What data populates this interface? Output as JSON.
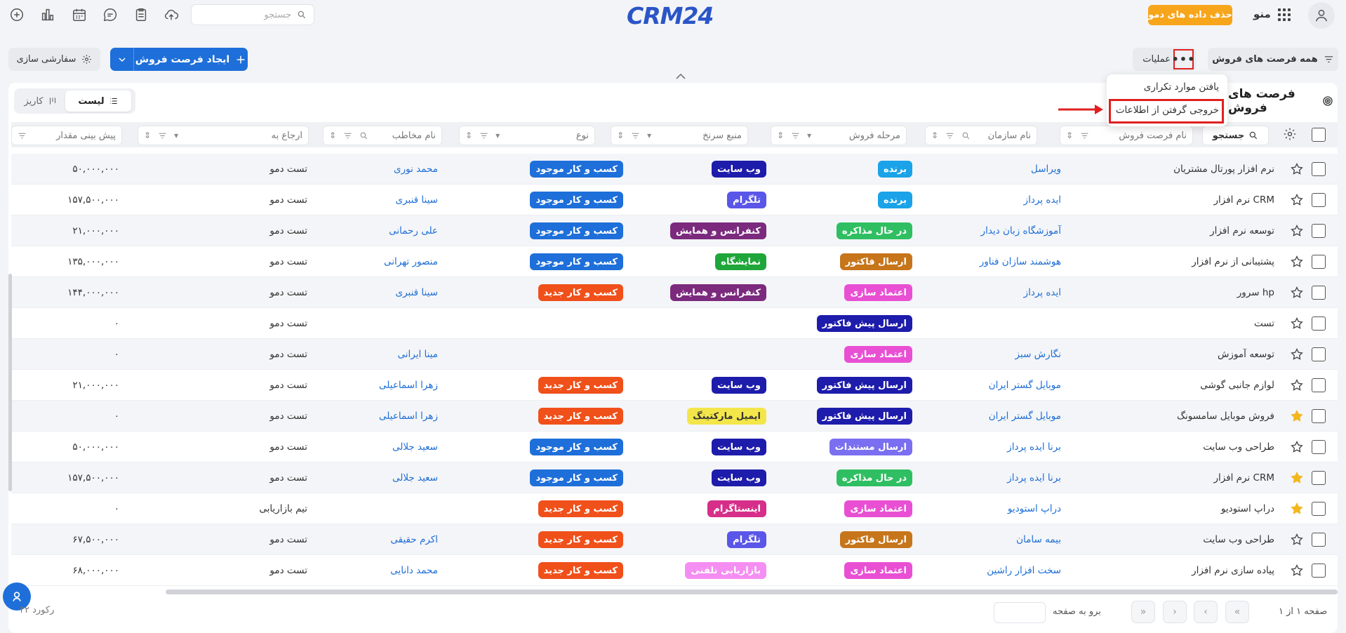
{
  "header": {
    "search_placeholder": "جستجو",
    "logo_text": "CRM24",
    "demo_button": "حذف داده های دمو",
    "menu_label": "منو"
  },
  "toolbar": {
    "filter_label": "همه فرصت های فروش",
    "operations_label": "عملیات",
    "more_label": "•••",
    "create_label": "ایجاد فرصت فروش",
    "customize_label": "سفارشی سازی"
  },
  "dropdown": {
    "items": [
      "یافتن موارد تکراری",
      "خروجی گرفتن از اطلاعات"
    ]
  },
  "page": {
    "title": "فرصت های فروش",
    "views": {
      "list": "لیست",
      "kanban": "کاریز"
    }
  },
  "columns": {
    "search": "جستجو",
    "name": "نام فرصت فروش",
    "org": "نام سازمان",
    "stage": "مرحله فروش",
    "source": "منبع سرنخ",
    "type": "نوع",
    "contact": "نام مخاطب",
    "ref": "ارجاع به",
    "amount": "پیش بینی مقدار"
  },
  "colors": {
    "winner": "#1aa3e8",
    "negotiation": "#2fbf62",
    "invoice": "#c7751a",
    "trust": "#e94fd3",
    "proforma": "#1e1cab",
    "docs": "#7a6ff0",
    "website": "#1e1cab",
    "telegram": "#5a56e8",
    "conference": "#7b2a7e",
    "exhibition": "#1fa63a",
    "email": "#f3e64a",
    "instagram": "#d62f8a",
    "phone": "#f58ef2",
    "existing": "#1e6fd9",
    "new": "#f0501a",
    "star": "#f3b71e"
  },
  "rows": [
    {
      "name": "نرم افزار پورتال مشتریان",
      "org": "ویراسل",
      "stage": "برنده",
      "stage_color": "#1aa3e8",
      "source": "وب سایت",
      "source_color": "#1e1cab",
      "type": "کسب و کار موجود",
      "type_color": "#1e6fd9",
      "contact": "محمد نوری",
      "ref": "تست دمو",
      "amount": "۵۰,۰۰۰,۰۰۰",
      "starred": false
    },
    {
      "name": "نرم افزار CRM",
      "org": "ایده پرداز",
      "stage": "برنده",
      "stage_color": "#1aa3e8",
      "source": "تلگرام",
      "source_color": "#5a56e8",
      "type": "کسب و کار موجود",
      "type_color": "#1e6fd9",
      "contact": "سینا قنبری",
      "ref": "تست دمو",
      "amount": "۱۵۷,۵۰۰,۰۰۰",
      "starred": false
    },
    {
      "name": "توسعه نرم افزار",
      "org": "آموزشگاه زبان دیدار",
      "stage": "در حال مذاکره",
      "stage_color": "#2fbf62",
      "source": "کنفرانس و همایش",
      "source_color": "#7b2a7e",
      "type": "کسب و کار موجود",
      "type_color": "#1e6fd9",
      "contact": "علی رحمانی",
      "ref": "تست دمو",
      "amount": "۲۱,۰۰۰,۰۰۰",
      "starred": false
    },
    {
      "name": "پشتیبانی از نرم افزار",
      "org": "هوشمند سازان فناور",
      "stage": "ارسال فاکتور",
      "stage_color": "#c7751a",
      "source": "نمایشگاه",
      "source_color": "#1fa63a",
      "type": "کسب و کار موجود",
      "type_color": "#1e6fd9",
      "contact": "منصور تهرانی",
      "ref": "تست دمو",
      "amount": "۱۳۵,۰۰۰,۰۰۰",
      "starred": false
    },
    {
      "name": "سرور hp",
      "org": "ایده پرداز",
      "stage": "اعتماد سازی",
      "stage_color": "#e94fd3",
      "source": "کنفرانس و همایش",
      "source_color": "#7b2a7e",
      "type": "کسب و کار جدید",
      "type_color": "#f0501a",
      "contact": "سینا قنبری",
      "ref": "تست دمو",
      "amount": "۱۴۴,۰۰۰,۰۰۰",
      "starred": false
    },
    {
      "name": "تست",
      "org": "",
      "stage": "ارسال پیش فاکتور",
      "stage_color": "#1e1cab",
      "source": "",
      "source_color": "",
      "type": "",
      "type_color": "",
      "contact": "",
      "ref": "تست دمو",
      "amount": "۰",
      "starred": false
    },
    {
      "name": "توسعه آموزش",
      "org": "نگارش سبز",
      "stage": "اعتماد سازی",
      "stage_color": "#e94fd3",
      "source": "",
      "source_color": "",
      "type": "",
      "type_color": "",
      "contact": "مینا ایرانی",
      "ref": "تست دمو",
      "amount": "۰",
      "starred": false
    },
    {
      "name": "لوازم جانبی گوشی",
      "org": "موبایل گستر ایران",
      "stage": "ارسال پیش فاکتور",
      "stage_color": "#1e1cab",
      "source": "وب سایت",
      "source_color": "#1e1cab",
      "type": "کسب و کار جدید",
      "type_color": "#f0501a",
      "contact": "زهرا اسماعیلی",
      "ref": "تست دمو",
      "amount": "۲۱,۰۰۰,۰۰۰",
      "starred": false
    },
    {
      "name": "فروش موبایل سامسونگ",
      "org": "موبایل گستر ایران",
      "stage": "ارسال پیش فاکتور",
      "stage_color": "#1e1cab",
      "source": "ایمیل مارکتینگ",
      "source_color": "#f3e64a",
      "type": "کسب و کار جدید",
      "type_color": "#f0501a",
      "contact": "زهرا اسماعیلی",
      "ref": "تست دمو",
      "amount": "۰",
      "starred": true
    },
    {
      "name": "طراحی وب سایت",
      "org": "برنا ایده پرداز",
      "stage": "ارسال مستندات",
      "stage_color": "#7a6ff0",
      "source": "وب سایت",
      "source_color": "#1e1cab",
      "type": "کسب و کار موجود",
      "type_color": "#1e6fd9",
      "contact": "سعید جلالی",
      "ref": "تست دمو",
      "amount": "۵۰,۰۰۰,۰۰۰",
      "starred": false
    },
    {
      "name": "نرم افزار CRM",
      "org": "برنا ایده پرداز",
      "stage": "در حال مذاکره",
      "stage_color": "#2fbf62",
      "source": "وب سایت",
      "source_color": "#1e1cab",
      "type": "کسب و کار موجود",
      "type_color": "#1e6fd9",
      "contact": "سعید جلالی",
      "ref": "تست دمو",
      "amount": "۱۵۷,۵۰۰,۰۰۰",
      "starred": true
    },
    {
      "name": "دراپ استودیو",
      "org": "دراپ استودیو",
      "stage": "اعتماد سازی",
      "stage_color": "#e94fd3",
      "source": "اینستاگرام",
      "source_color": "#d62f8a",
      "type": "کسب و کار جدید",
      "type_color": "#f0501a",
      "contact": "",
      "ref": "تیم بازاریابی",
      "amount": "۰",
      "starred": true
    },
    {
      "name": "طراحی وب سایت",
      "org": "بیمه سامان",
      "stage": "ارسال فاکتور",
      "stage_color": "#c7751a",
      "source": "تلگرام",
      "source_color": "#5a56e8",
      "type": "کسب و کار جدید",
      "type_color": "#f0501a",
      "contact": "اکرم حقیقی",
      "ref": "تست دمو",
      "amount": "۶۷,۵۰۰,۰۰۰",
      "starred": false
    },
    {
      "name": "پیاده سازی نرم افزار",
      "org": "سخت افزار راشین",
      "stage": "اعتماد سازی",
      "stage_color": "#e94fd3",
      "source": "بازاریابی تلفنی",
      "source_color": "#f58ef2",
      "type": "کسب و کار جدید",
      "type_color": "#f0501a",
      "contact": "محمد دانایی",
      "ref": "تست دمو",
      "amount": "۶۸,۰۰۰,۰۰۰",
      "starred": false
    }
  ],
  "footer": {
    "records": "۳۲ رکورد",
    "goto_label": "برو به صفحه",
    "page_info": "صفحه ۱ از ۱"
  }
}
